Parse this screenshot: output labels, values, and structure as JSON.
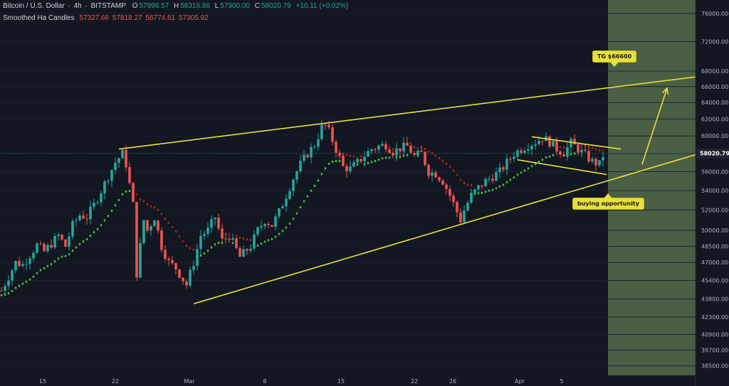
{
  "header": {
    "symbol": "Bitcoin / U.S. Dollar",
    "interval": "4h",
    "exchange": "BITSTAMP",
    "ohlc": [
      {
        "k": "O",
        "v": "57998.57"
      },
      {
        "k": "H",
        "v": "58316.86"
      },
      {
        "k": "L",
        "v": "57900.00"
      },
      {
        "k": "C",
        "v": "58020.79"
      }
    ],
    "change": "+10.11 (+0.02%)",
    "indicator_name": "Smoothed Ha Candles",
    "indicator_values": [
      "57327.66",
      "57818.27",
      "56774.61",
      "57305.92"
    ]
  },
  "annotations": {
    "target_label": "TG $66600",
    "buy_label": "buying opportunity"
  },
  "colors": {
    "background": "#131722",
    "bull": "#26a69a",
    "bear": "#ef5350",
    "trendline": "#e8df3a",
    "future_zone": "#4b5f45",
    "ha_up": "#3ec43e",
    "ha_down": "#b0201c"
  },
  "chart_data": {
    "type": "candlestick",
    "y_scale": "log",
    "ylim": [
      37800,
      78000
    ],
    "y_ticks": [
      "76000.00",
      "72000.00",
      "68000.00",
      "66000.00",
      "64000.00",
      "62000.00",
      "60000.00",
      "58000.00",
      "56000.00",
      "54000.00",
      "52000.00",
      "50000.00",
      "48500.00",
      "47000.00",
      "45400.00",
      "43800.00",
      "42300.00",
      "40900.00",
      "39700.00",
      "38500.00"
    ],
    "x_ticks": [
      "15",
      "22",
      "Mar",
      "8",
      "15",
      "22",
      "26",
      "Apr",
      "5"
    ],
    "last_price": "58020.79",
    "price_path": [
      [
        0,
        44500
      ],
      [
        2,
        47000
      ],
      [
        3,
        46800
      ],
      [
        5,
        48600
      ],
      [
        6,
        48000
      ],
      [
        8,
        49500
      ],
      [
        9,
        48500
      ],
      [
        10,
        50500
      ],
      [
        11,
        51500
      ],
      [
        12,
        51300
      ],
      [
        13,
        52500
      ],
      [
        15,
        55500
      ],
      [
        16,
        57000
      ],
      [
        17,
        58000
      ],
      [
        17.4,
        57300
      ],
      [
        18.5,
        52500
      ],
      [
        19,
        46000
      ],
      [
        19.5,
        48500
      ],
      [
        20,
        51000
      ],
      [
        20.5,
        50000
      ],
      [
        21.5,
        51300
      ],
      [
        22.5,
        48500
      ],
      [
        23.5,
        47000
      ],
      [
        24.5,
        46500
      ],
      [
        26,
        45000
      ],
      [
        27,
        47000
      ],
      [
        28,
        49500
      ],
      [
        29,
        50000
      ],
      [
        30,
        51300
      ],
      [
        31,
        49000
      ],
      [
        32,
        49500
      ],
      [
        33.5,
        47500
      ],
      [
        35,
        48500
      ],
      [
        36,
        50000
      ],
      [
        37,
        51000
      ],
      [
        38,
        50500
      ],
      [
        39,
        51800
      ],
      [
        40,
        53500
      ],
      [
        41,
        55300
      ],
      [
        42,
        56800
      ],
      [
        43,
        58000
      ],
      [
        44,
        59000
      ],
      [
        45,
        61000
      ],
      [
        45.3,
        61500
      ],
      [
        46,
        60500
      ],
      [
        47,
        58500
      ],
      [
        48,
        56500
      ],
      [
        49,
        56300
      ],
      [
        50,
        57000
      ],
      [
        51,
        57800
      ],
      [
        52,
        58500
      ],
      [
        53,
        58800
      ],
      [
        54,
        59000
      ],
      [
        55,
        58200
      ],
      [
        56,
        58600
      ],
      [
        57,
        58800
      ],
      [
        58,
        57700
      ],
      [
        59,
        58000
      ],
      [
        60,
        56000
      ],
      [
        61,
        55800
      ],
      [
        62,
        55000
      ],
      [
        63,
        53500
      ],
      [
        64,
        51800
      ],
      [
        64.5,
        51000
      ],
      [
        65,
        52000
      ],
      [
        66,
        53500
      ],
      [
        67,
        54300
      ],
      [
        68,
        55000
      ],
      [
        69,
        55500
      ],
      [
        70,
        56000
      ],
      [
        71,
        57000
      ],
      [
        72,
        58000
      ],
      [
        73,
        58500
      ],
      [
        74,
        59000
      ],
      [
        75,
        59300
      ],
      [
        76,
        59800
      ],
      [
        77,
        59300
      ],
      [
        78,
        58500
      ],
      [
        79,
        58100
      ],
      [
        80,
        59200
      ],
      [
        81,
        58500
      ],
      [
        82,
        57800
      ],
      [
        83,
        57100
      ],
      [
        84,
        56800
      ],
      [
        84.6,
        58000
      ]
    ],
    "trendlines": [
      {
        "name": "upper",
        "from": [
          16.5,
          58500
        ],
        "to": [
          98,
          67300
        ]
      },
      {
        "name": "lower",
        "from": [
          27,
          43400
        ],
        "to": [
          101,
          58700
        ]
      },
      {
        "name": "flag-top",
        "from": [
          74.5,
          59900
        ],
        "to": [
          87,
          58500
        ]
      },
      {
        "name": "flag-bottom",
        "from": [
          72.5,
          57300
        ],
        "to": [
          85,
          55700
        ]
      }
    ],
    "target_arrow": {
      "from": [
        90,
        56800
      ],
      "to": [
        93.5,
        65800
      ]
    }
  }
}
